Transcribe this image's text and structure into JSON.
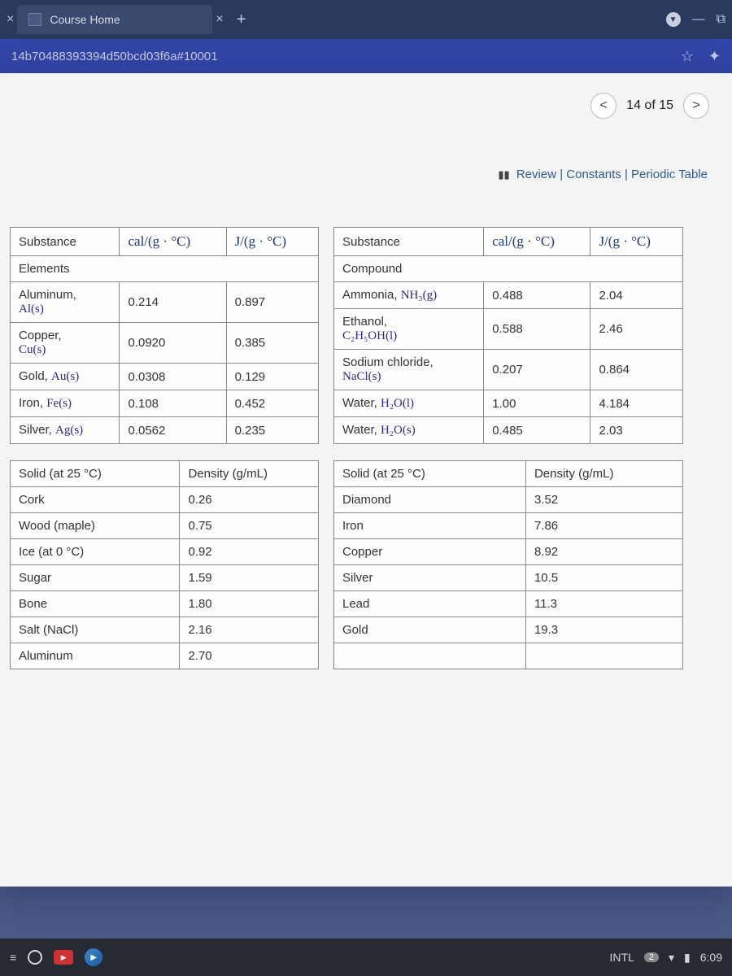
{
  "browser": {
    "tab_title": "Course Home",
    "tab_close": "×",
    "tab_new_close": "×",
    "tab_plus": "+",
    "minimize": "—",
    "window_icon": "⧉",
    "url": "14b70488393394d50bcd03f6a#10001",
    "star": "☆",
    "ext": "✦"
  },
  "nav": {
    "prev": "<",
    "label": "14 of 15",
    "next": ">"
  },
  "refs": {
    "review": "Review",
    "constants": "Constants",
    "periodic": "Periodic Table",
    "sep": " | "
  },
  "headers": {
    "substance": "Substance",
    "cal": "cal/(g · °C)",
    "j": "J/(g · °C)",
    "elements": "Elements",
    "compound": "Compound",
    "solid25": "Solid (at 25 °C)",
    "density": "Density (g/mL)"
  },
  "elements_table": {
    "rows": [
      {
        "name_a": "Aluminum,",
        "name_b": "Al(s)",
        "cal": "0.214",
        "j": "0.897"
      },
      {
        "name_a": "Copper,",
        "name_b": "Cu(s)",
        "cal": "0.0920",
        "j": "0.385"
      },
      {
        "name_a": "Gold, ",
        "name_b": "Au(s)",
        "cal": "0.0308",
        "j": "0.129"
      },
      {
        "name_a": "Iron, ",
        "name_b": "Fe(s)",
        "cal": "0.108",
        "j": "0.452"
      },
      {
        "name_a": "Silver, ",
        "name_b": "Ag(s)",
        "cal": "0.0562",
        "j": "0.235"
      }
    ]
  },
  "compounds_table": {
    "rows": [
      {
        "name_a": "Ammonia, ",
        "name_b": "NH₃(g)",
        "cal": "0.488",
        "j": "2.04"
      },
      {
        "name_a": "Ethanol,",
        "name_b": "C₂H₅OH(l)",
        "cal": "0.588",
        "j": "2.46"
      },
      {
        "name_a": "Sodium chloride,",
        "name_b": "NaCl(s)",
        "cal": "0.207",
        "j": "0.864"
      },
      {
        "name_a": "Water, ",
        "name_b": "H₂O(l)",
        "cal": "1.00",
        "j": "4.184"
      },
      {
        "name_a": "Water, ",
        "name_b": "H₂O(s)",
        "cal": "0.485",
        "j": "2.03"
      }
    ]
  },
  "density_left": {
    "rows": [
      {
        "name": "Cork",
        "val": "0.26"
      },
      {
        "name": "Wood (maple)",
        "val": "0.75"
      },
      {
        "name": "Ice (at 0 °C)",
        "val": "0.92"
      },
      {
        "name": "Sugar",
        "val": "1.59"
      },
      {
        "name": "Bone",
        "val": "1.80"
      },
      {
        "name": "Salt (NaCl)",
        "val": "2.16"
      },
      {
        "name": "Aluminum",
        "val": "2.70"
      }
    ]
  },
  "density_right": {
    "rows": [
      {
        "name": "Diamond",
        "val": "3.52"
      },
      {
        "name": "Iron",
        "val": "7.86"
      },
      {
        "name": "Copper",
        "val": "8.92"
      },
      {
        "name": "Silver",
        "val": "10.5"
      },
      {
        "name": "Lead",
        "val": "11.3"
      },
      {
        "name": "Gold",
        "val": "19.3"
      }
    ]
  },
  "taskbar": {
    "intl": "INTL",
    "badge": "2",
    "time": "6:09",
    "yt": "▶",
    "play": "▶",
    "dropdown": "▼",
    "battery": "▮",
    "wifi": "▾"
  }
}
